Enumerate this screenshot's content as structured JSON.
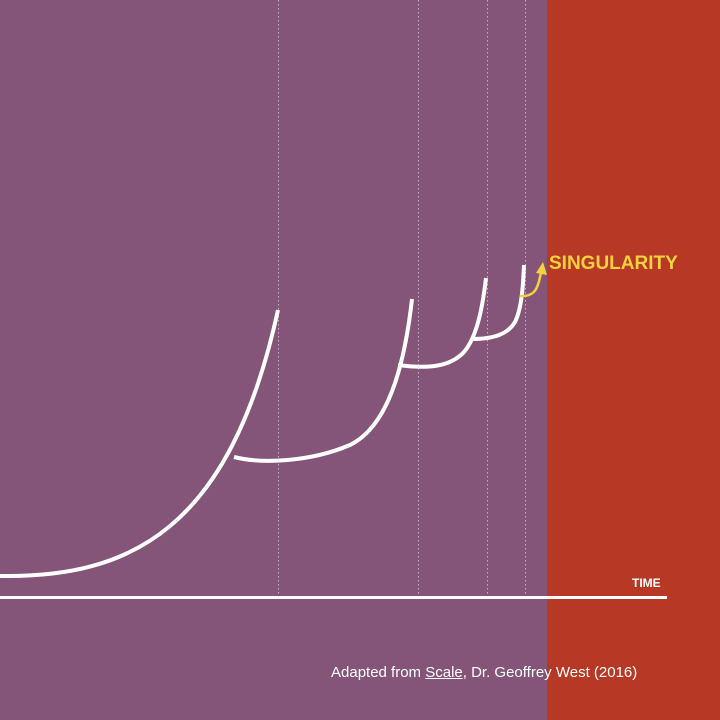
{
  "colors": {
    "background": "#845578",
    "singularity_zone": "#b73824",
    "curve": "#ffffff",
    "guide_line": "#c9b3c4",
    "accent": "#f6d13f"
  },
  "labels": {
    "time": "TIME",
    "singularity": "SINGULARITY"
  },
  "credit": {
    "prefix": "Adapted from ",
    "book": "Scale",
    "suffix": ", Dr. Geoffrey West (2016)"
  },
  "diagram": {
    "type": "successive growth cycles accelerating toward a singularity",
    "cycles": 4,
    "guide_lines": 4,
    "arrow_icon": "curved-arrow-up"
  }
}
